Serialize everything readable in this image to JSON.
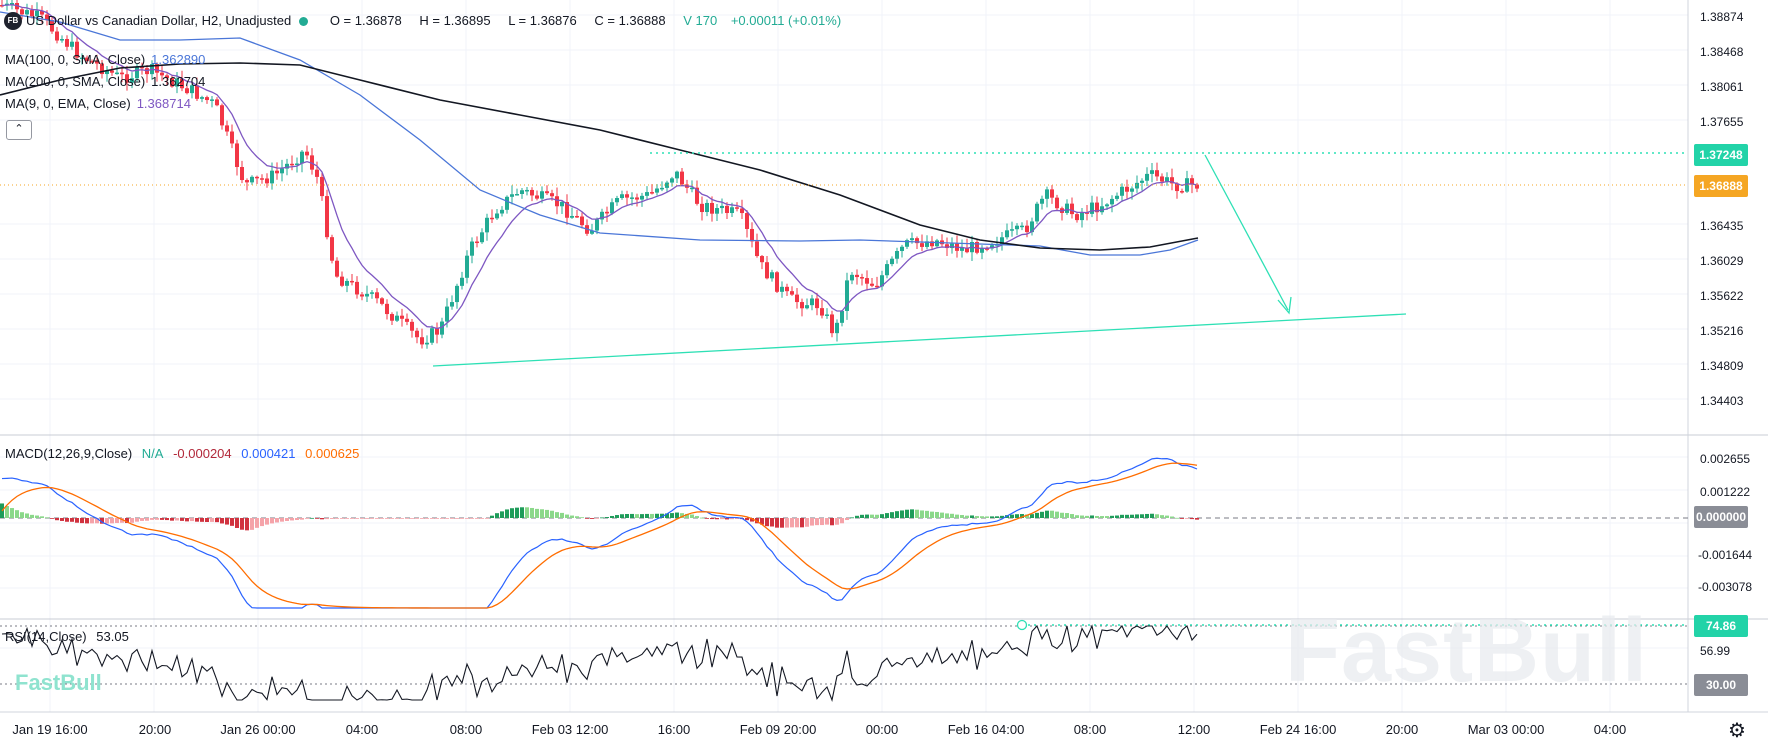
{
  "header": {
    "logo": "FB",
    "title": "US Dollar vs Canadian Dollar, H2, Unadjusted",
    "open": "O = 1.36878",
    "high": "H = 1.36895",
    "low": "L = 1.36876",
    "close": "C = 1.36888",
    "volume": "V 170",
    "change": "+0.00011 (+0.01%)"
  },
  "indicators": {
    "ma100": {
      "label": "MA(100, 0, SMA, Close)",
      "value": "1.362890",
      "color": "#4a76d8"
    },
    "ma200": {
      "label": "MA(200, 0, SMA, Close)",
      "value": "1.362704",
      "color": "#131722"
    },
    "ema9": {
      "label": "MA(9, 0, EMA, Close)",
      "value": "1.368714",
      "color": "#7e57c2"
    },
    "collapse_icon": "chevron-up-icon"
  },
  "macd": {
    "label": "MACD(12,26,9,Close)",
    "na": "N/A",
    "hist": "-0.000204",
    "macd": "0.000421",
    "signal": "0.000625",
    "axis": [
      "0.002655",
      "0.001222",
      "0.000000",
      "-0.001644",
      "-0.003078"
    ],
    "zero_tag": "0.000000"
  },
  "rsi": {
    "label": "RSI(14,Close)",
    "value": "53.05",
    "axis": [
      "56.99"
    ],
    "upper_tag": "74.86",
    "lower_tag": "30.00"
  },
  "price_axis": [
    "1.38874",
    "1.38468",
    "1.38061",
    "1.37655",
    "1.36435",
    "1.36029",
    "1.35622",
    "1.35216",
    "1.34809",
    "1.34403"
  ],
  "price_tags": {
    "resistance": "1.37248",
    "current": "1.36888",
    "resistance_color": "#22d3a8",
    "current_color": "#f5a623"
  },
  "time_axis": [
    "Jan 19 16:00",
    "20:00",
    "Jan 26 00:00",
    "04:00",
    "08:00",
    "Feb 03 12:00",
    "16:00",
    "Feb 09 20:00",
    "00:00",
    "Feb 16 04:00",
    "08:00",
    "12:00",
    "Feb 24 16:00",
    "20:00",
    "Mar 03 00:00",
    "04:00"
  ],
  "watermark": "FastBull",
  "settings_icon": "gear-icon",
  "colors": {
    "up": "#22ab94",
    "down": "#f23645",
    "trendline": "#2ee0b5",
    "macd_line": "#2962ff",
    "signal_line": "#ff6d00",
    "rsi_line": "#131722"
  },
  "chart_data": {
    "type": "candlestick",
    "series": [
      {
        "name": "MA(100, 0, SMA, Close)",
        "last": 1.36289
      },
      {
        "name": "MA(200, 0, SMA, Close)",
        "last": 1.362704
      },
      {
        "name": "MA(9, 0, EMA, Close)",
        "last": 1.368714
      }
    ],
    "last_close": 1.36888,
    "resistance_level": 1.37248,
    "ylim": [
      1.342,
      1.391
    ]
  }
}
